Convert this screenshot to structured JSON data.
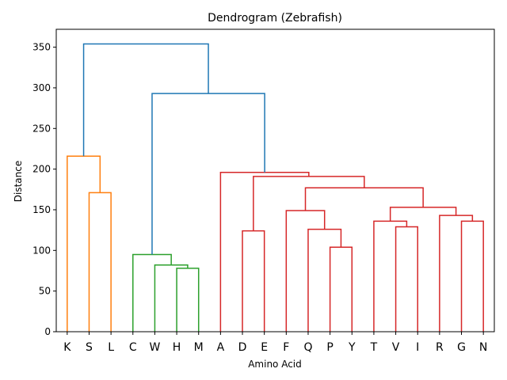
{
  "chart_data": {
    "type": "dendrogram",
    "title": "Dendrogram (Zebrafish)",
    "xlabel": "Amino Acid",
    "ylabel": "Distance",
    "ylim": [
      0,
      372
    ],
    "yticks": [
      0,
      50,
      100,
      150,
      200,
      250,
      300,
      350
    ],
    "grid": false,
    "leaves": [
      "K",
      "S",
      "L",
      "C",
      "W",
      "H",
      "M",
      "A",
      "D",
      "E",
      "F",
      "Q",
      "P",
      "Y",
      "T",
      "V",
      "I",
      "R",
      "G",
      "N"
    ],
    "colors": {
      "c1": "#ff7f0e",
      "c2": "#2ca02c",
      "c3": "#d62728",
      "above": "#1f77b4"
    },
    "links": [
      {
        "left": "S",
        "right": "L",
        "height": 171,
        "color": "c1"
      },
      {
        "left": "K",
        "right": "S+L",
        "height": 216,
        "color": "c1"
      },
      {
        "left": "H",
        "right": "M",
        "height": 78,
        "color": "c2"
      },
      {
        "left": "W",
        "right": "H+M",
        "height": 82,
        "color": "c2"
      },
      {
        "left": "C",
        "right": "W+H+M",
        "height": 95,
        "color": "c2"
      },
      {
        "left": "D",
        "right": "E",
        "height": 124,
        "color": "c3"
      },
      {
        "left": "P",
        "right": "Y",
        "height": 104,
        "color": "c3"
      },
      {
        "left": "Q",
        "right": "P+Y",
        "height": 126,
        "color": "c3"
      },
      {
        "left": "F",
        "right": "Q+P+Y",
        "height": 149,
        "color": "c3"
      },
      {
        "left": "V",
        "right": "I",
        "height": 129,
        "color": "c3"
      },
      {
        "left": "T",
        "right": "V+I",
        "height": 136,
        "color": "c3"
      },
      {
        "left": "G",
        "right": "N",
        "height": 136,
        "color": "c3"
      },
      {
        "left": "R",
        "right": "G+N",
        "height": 143,
        "color": "c3"
      },
      {
        "left": "T+V+I",
        "right": "R+G+N",
        "height": 153,
        "color": "c3"
      },
      {
        "left": "F+Q+P+Y",
        "right": "T+V+I+R+G+N",
        "height": 177,
        "color": "c3"
      },
      {
        "left": "D+E",
        "right": "F..N",
        "height": 191,
        "color": "c3"
      },
      {
        "left": "A",
        "right": "D..N",
        "height": 196,
        "color": "c3"
      },
      {
        "left": "C+W+H+M",
        "right": "A..N",
        "height": 293,
        "color": "above"
      },
      {
        "left": "K+S+L",
        "right": "C..N",
        "height": 354,
        "color": "above"
      }
    ]
  }
}
